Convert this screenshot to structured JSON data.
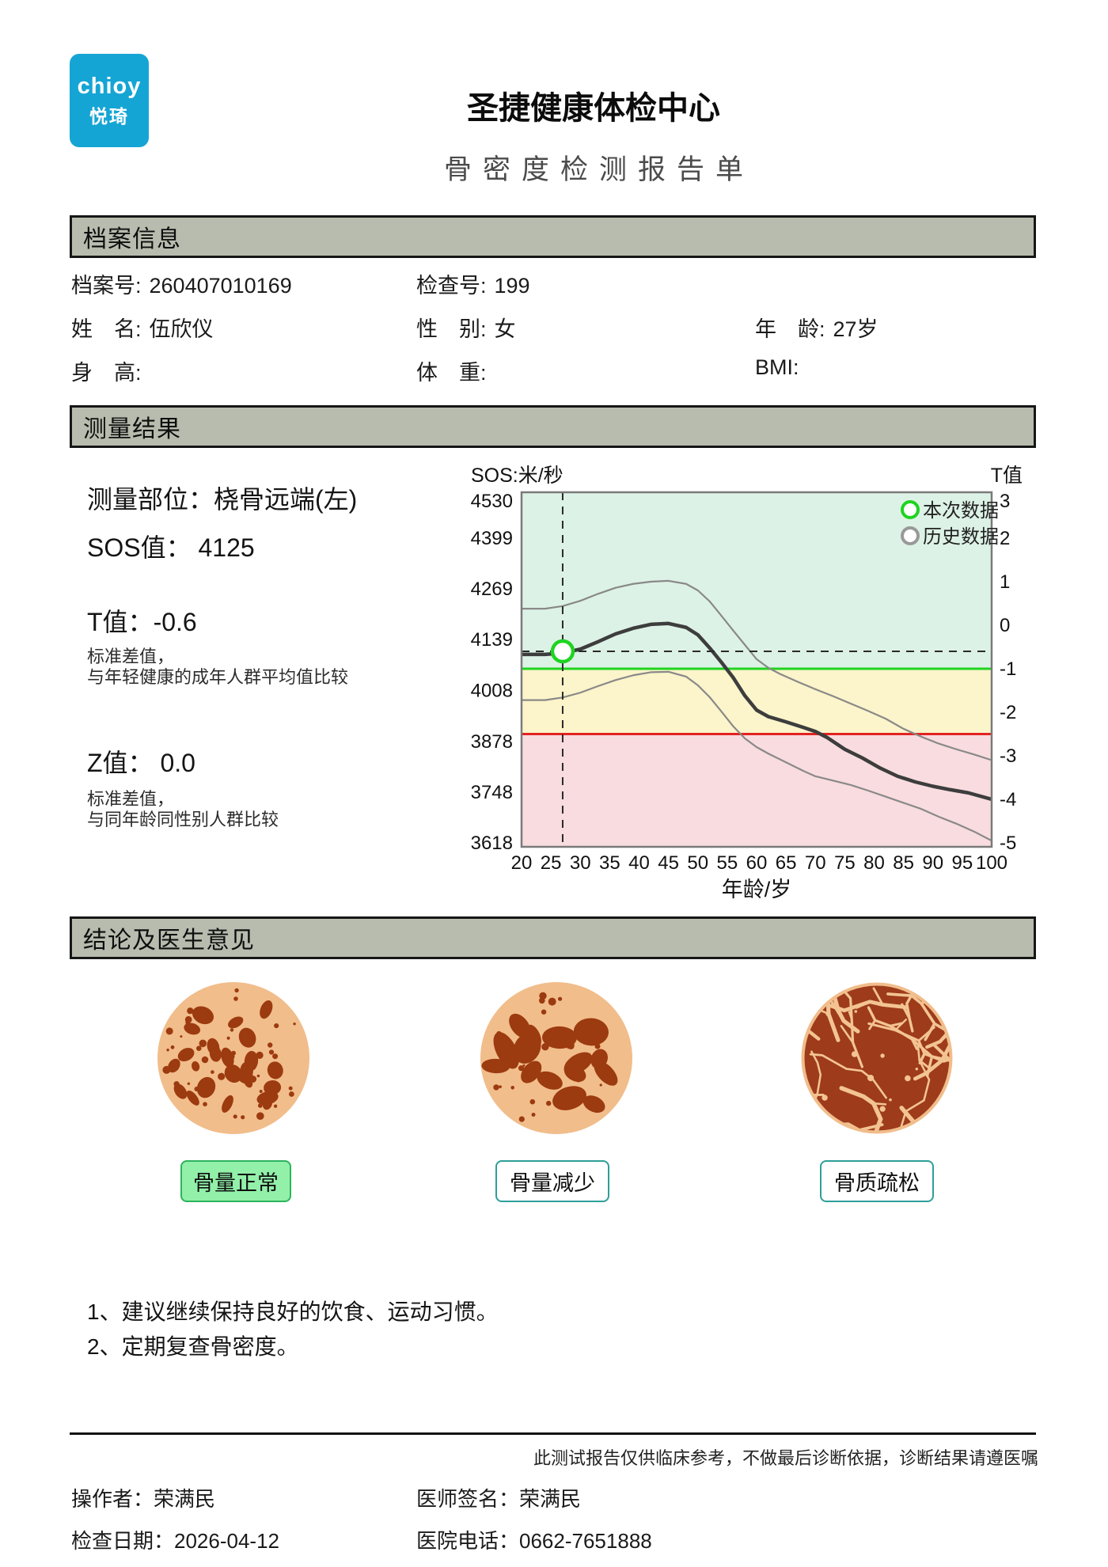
{
  "colors": {
    "accent_blue": "#15a5d4",
    "section_bar": "#b7bcae",
    "zone_green": "#ddf2e6",
    "zone_yellow": "#fcf4ca",
    "zone_pink": "#f9dcdf",
    "threshold_green": "#1fd41f",
    "threshold_red": "#e32222",
    "current_marker": "#1ed421",
    "history_marker": "#999999",
    "mean_curve": "#3d3d3d",
    "band_curve": "#898989",
    "bone_tan": "#f1bd8b",
    "bone_brown": "#9c3a10",
    "bone3_base": "#9d3b1b",
    "bone3_crack": "#f3c492"
  },
  "header": {
    "logo_line1": "chioy",
    "logo_line2": "悦琦",
    "title": "圣捷健康体检中心",
    "subtitle": "骨密度检测报告单"
  },
  "sections": {
    "archive": "档案信息",
    "results": "测量结果",
    "conclusion": "结论及医生意见"
  },
  "archive": {
    "fields": [
      {
        "label": "档案号:",
        "value": "260407010169"
      },
      {
        "label": "检查号:",
        "value": "199"
      },
      {
        "label": "姓　名:",
        "value": "伍欣仪"
      },
      {
        "label": "性　别:",
        "value": "女"
      },
      {
        "label": "年　龄:",
        "value": "27岁"
      },
      {
        "label": "身　高:",
        "value": ""
      },
      {
        "label": "体　重:",
        "value": ""
      },
      {
        "label": "BMI:",
        "value": ""
      }
    ]
  },
  "measure": {
    "site_label": "测量部位：",
    "site_value": "桡骨远端(左)",
    "sos_label": "SOS值：",
    "sos_value": "4125",
    "t_label": "T值：",
    "t_value": "-0.6",
    "t_desc1": "标准差值，",
    "t_desc2": "与年轻健康的成年人群平均值比较",
    "z_label": "Z值：",
    "z_value": "0.0",
    "z_desc1": "标准差值，",
    "z_desc2": "与同年龄同性别人群比较"
  },
  "chart_data": {
    "type": "line",
    "left_axis": {
      "label": "SOS:米/秒",
      "ticks": [
        4530,
        4399,
        4269,
        4139,
        4008,
        3878,
        3748,
        3618
      ]
    },
    "right_axis": {
      "label": "T值",
      "ticks": [
        3,
        2,
        1,
        0,
        -1,
        -2,
        -3,
        -4,
        -5
      ]
    },
    "xlabel": "年龄/岁",
    "x_ticks": [
      20,
      25,
      30,
      35,
      40,
      45,
      50,
      55,
      60,
      65,
      70,
      75,
      80,
      85,
      90,
      95,
      100
    ],
    "x_range": [
      20,
      100
    ],
    "zones": [
      {
        "name": "normal",
        "t_from": -1,
        "t_to": 3.1
      },
      {
        "name": "osteopenia",
        "t_from": -2.5,
        "t_to": -1
      },
      {
        "name": "osteoporosis",
        "t_from": -5.1,
        "t_to": -2.5
      }
    ],
    "thresholds": [
      {
        "t": -1,
        "color_key": "threshold_green"
      },
      {
        "t": -2.5,
        "color_key": "threshold_red"
      }
    ],
    "legend": [
      {
        "label": "本次数据",
        "color_key": "current_marker"
      },
      {
        "label": "历史数据",
        "color_key": "history_marker"
      }
    ],
    "current_point": {
      "age": 27,
      "t": -0.6,
      "sos": 4125
    },
    "reference_curves": {
      "upper": [
        [
          20,
          0.38
        ],
        [
          24,
          0.38
        ],
        [
          27,
          0.44
        ],
        [
          30,
          0.56
        ],
        [
          33,
          0.72
        ],
        [
          36,
          0.86
        ],
        [
          39,
          0.95
        ],
        [
          42,
          1.0
        ],
        [
          45,
          1.02
        ],
        [
          48,
          0.95
        ],
        [
          50,
          0.8
        ],
        [
          52,
          0.55
        ],
        [
          54,
          0.22
        ],
        [
          56,
          -0.12
        ],
        [
          58,
          -0.45
        ],
        [
          60,
          -0.78
        ],
        [
          62,
          -0.98
        ],
        [
          64,
          -1.12
        ],
        [
          67,
          -1.3
        ],
        [
          70,
          -1.47
        ],
        [
          73,
          -1.63
        ],
        [
          76,
          -1.8
        ],
        [
          79,
          -1.97
        ],
        [
          82,
          -2.15
        ],
        [
          85,
          -2.38
        ],
        [
          88,
          -2.56
        ],
        [
          91,
          -2.72
        ],
        [
          94,
          -2.85
        ],
        [
          97,
          -2.97
        ],
        [
          100,
          -3.1
        ]
      ],
      "mean": [
        [
          20,
          -0.67
        ],
        [
          24,
          -0.67
        ],
        [
          27,
          -0.64
        ],
        [
          30,
          -0.55
        ],
        [
          33,
          -0.38
        ],
        [
          36,
          -0.2
        ],
        [
          39,
          -0.07
        ],
        [
          42,
          0.02
        ],
        [
          45,
          0.04
        ],
        [
          48,
          -0.05
        ],
        [
          50,
          -0.22
        ],
        [
          52,
          -0.52
        ],
        [
          54,
          -0.85
        ],
        [
          56,
          -1.2
        ],
        [
          58,
          -1.62
        ],
        [
          60,
          -1.95
        ],
        [
          62,
          -2.1
        ],
        [
          65,
          -2.22
        ],
        [
          68,
          -2.35
        ],
        [
          70,
          -2.44
        ],
        [
          72,
          -2.58
        ],
        [
          75,
          -2.85
        ],
        [
          78,
          -3.05
        ],
        [
          81,
          -3.28
        ],
        [
          84,
          -3.47
        ],
        [
          87,
          -3.6
        ],
        [
          90,
          -3.7
        ],
        [
          93,
          -3.78
        ],
        [
          96,
          -3.85
        ],
        [
          100,
          -4.0
        ]
      ],
      "lower": [
        [
          20,
          -1.72
        ],
        [
          24,
          -1.72
        ],
        [
          27,
          -1.66
        ],
        [
          30,
          -1.55
        ],
        [
          33,
          -1.4
        ],
        [
          36,
          -1.26
        ],
        [
          39,
          -1.15
        ],
        [
          42,
          -1.08
        ],
        [
          45,
          -1.07
        ],
        [
          48,
          -1.18
        ],
        [
          50,
          -1.38
        ],
        [
          52,
          -1.65
        ],
        [
          54,
          -1.98
        ],
        [
          56,
          -2.32
        ],
        [
          58,
          -2.6
        ],
        [
          60,
          -2.8
        ],
        [
          62,
          -2.95
        ],
        [
          65,
          -3.15
        ],
        [
          68,
          -3.35
        ],
        [
          70,
          -3.47
        ],
        [
          73,
          -3.57
        ],
        [
          76,
          -3.67
        ],
        [
          79,
          -3.8
        ],
        [
          82,
          -3.94
        ],
        [
          85,
          -4.08
        ],
        [
          88,
          -4.22
        ],
        [
          91,
          -4.4
        ],
        [
          94,
          -4.56
        ],
        [
          97,
          -4.74
        ],
        [
          100,
          -4.95
        ]
      ]
    }
  },
  "conclusion": {
    "items": [
      {
        "label": "骨量正常",
        "style": "normal",
        "highlighted": true
      },
      {
        "label": "骨量减少",
        "style": "reduced",
        "highlighted": false
      },
      {
        "label": "骨质疏松",
        "style": "porous",
        "highlighted": false
      }
    ],
    "advice": [
      "1、建议继续保持良好的饮食、运动习惯。",
      "2、定期复查骨密度。"
    ]
  },
  "footer": {
    "disclaimer": "此测试报告仅供临床参考，不做最后诊断依据，诊断结果请遵医嘱",
    "fields": [
      {
        "label": "操作者：",
        "value": "荣满民"
      },
      {
        "label": "医师签名：",
        "value": "荣满民"
      },
      {
        "label": "检查日期：",
        "value": "2026-04-12"
      },
      {
        "label": "医院电话：",
        "value": "0662-7651888"
      }
    ]
  }
}
